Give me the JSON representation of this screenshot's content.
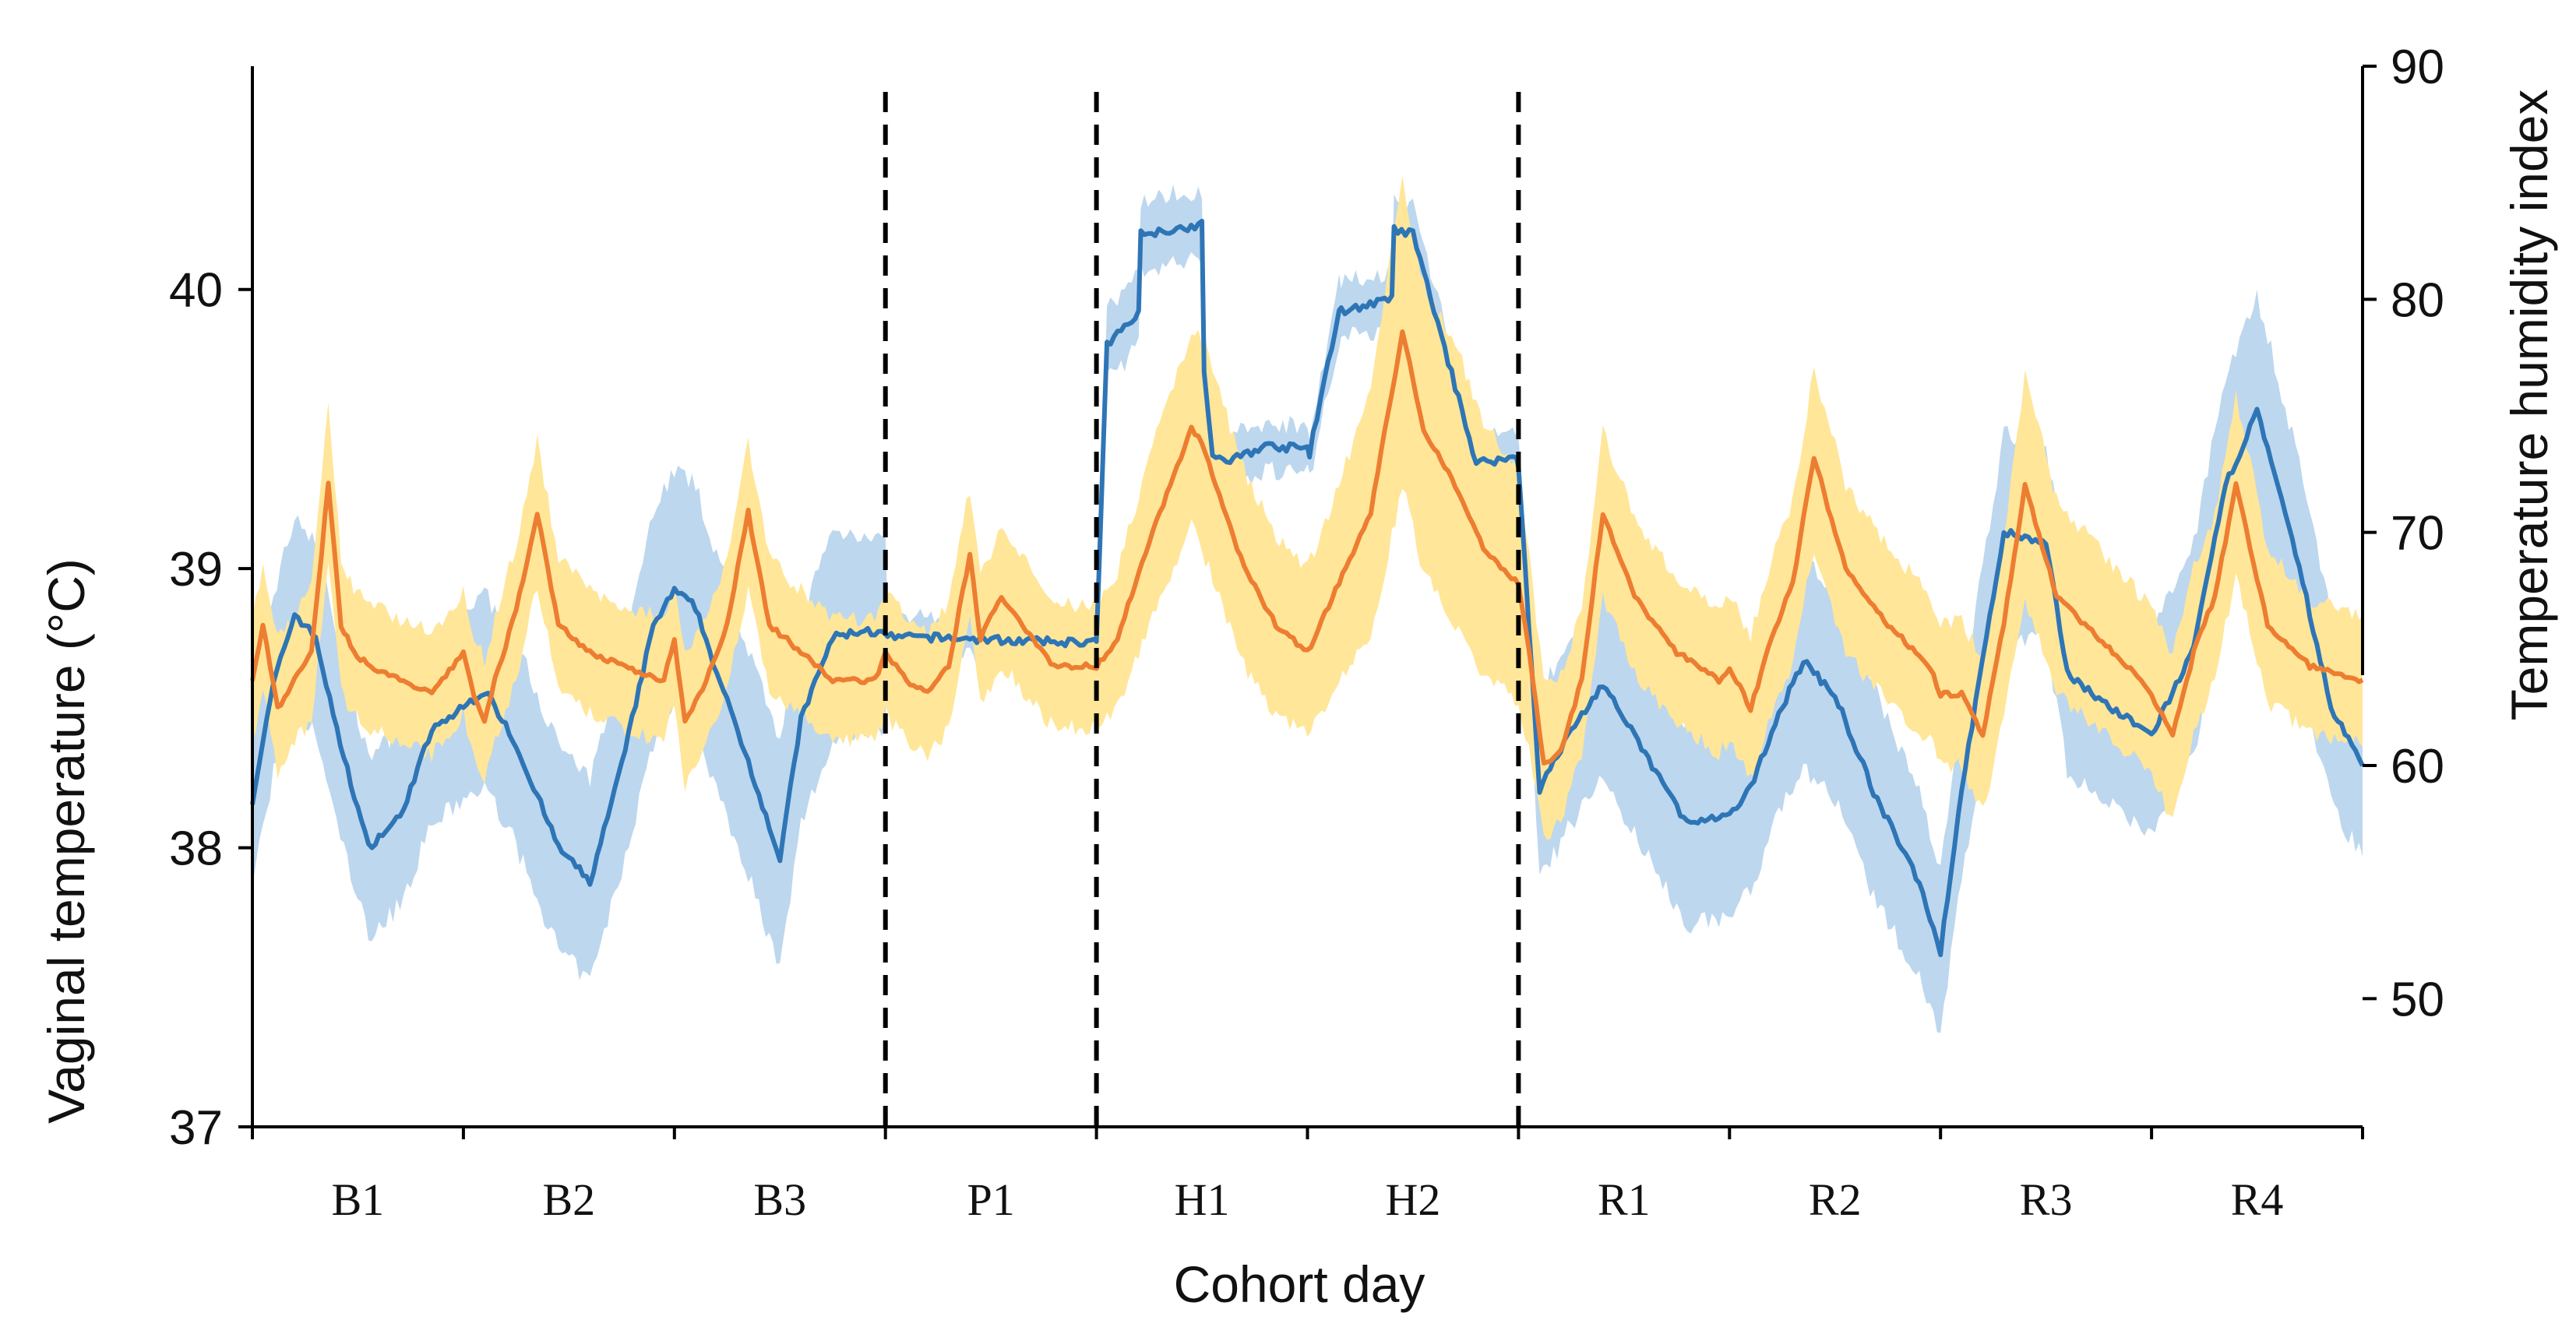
{
  "chart_data": {
    "type": "line",
    "title": "",
    "xlabel": "Cohort day",
    "ylabel_left": "Vaginal temperature (°C)",
    "ylabel_right": "Temperature humidity index",
    "left_axis": {
      "ylim": [
        37,
        40.8
      ],
      "ticks": [
        37,
        38,
        39,
        40
      ]
    },
    "right_axis": {
      "ylim": [
        44.5,
        90
      ],
      "ticks": [
        50,
        60,
        70,
        80,
        90
      ]
    },
    "categories": [
      "B1",
      "B2",
      "B3",
      "P1",
      "H1",
      "H2",
      "R1",
      "R2",
      "R3",
      "R4"
    ],
    "phase_dividers_after_day": [
      3,
      4,
      6
    ],
    "colors": {
      "thi_line": "#2e75b6",
      "thi_band": "#bdd7ee",
      "vt_line": "#ed7d31",
      "vt_band": "#ffe699"
    },
    "series": [
      {
        "name": "Temperature humidity index",
        "axis": "right",
        "x": [
          0,
          0.1,
          0.2,
          0.3,
          0.4,
          0.55,
          0.7,
          0.85,
          1,
          1.1,
          1.2,
          1.3,
          1.45,
          1.6,
          1.75,
          1.9,
          2,
          2.1,
          2.2,
          2.35,
          2.5,
          2.6,
          2.75,
          2.9,
          3,
          3.01,
          3.2,
          3.5,
          3.8,
          3.99,
          4,
          4.05,
          4.2,
          4.21,
          4.5,
          4.51,
          4.55,
          4.6,
          4.8,
          5,
          5.01,
          5.15,
          5.16,
          5.4,
          5.41,
          5.5,
          5.8,
          5.99,
          6,
          6.1,
          6.25,
          6.4,
          6.6,
          6.8,
          7,
          7.1,
          7.2,
          7.35,
          7.5,
          7.7,
          7.9,
          8,
          8.1,
          8.3,
          8.5,
          8.6,
          8.8,
          9,
          9.2,
          9.35,
          9.5,
          9.7,
          9.85,
          10
        ],
        "mean": [
          58.5,
          63.5,
          66.5,
          65.5,
          61.5,
          56.5,
          57.8,
          61.5,
          62.5,
          63.2,
          61.8,
          59.8,
          56.5,
          55,
          60,
          66,
          67.5,
          66.8,
          64,
          60.2,
          56,
          62,
          65.5,
          65.8,
          65.6,
          65.5,
          65.5,
          65.4,
          65.3,
          65.3,
          65.3,
          78,
          79.5,
          82.8,
          83.2,
          77,
          73.3,
          73,
          73.7,
          73.6,
          73.4,
          79.5,
          79.5,
          80,
          83,
          82.8,
          73,
          73.2,
          72.9,
          59,
          61.5,
          63.5,
          60.5,
          57.5,
          57.8,
          59,
          61.5,
          64.5,
          63,
          58.5,
          55,
          52,
          59,
          70,
          69.5,
          64,
          62.5,
          61.3,
          65,
          72,
          75.2,
          68.5,
          62.5,
          60
        ],
        "band_halfwidth": [
          3.5,
          3.8,
          4.2,
          4.2,
          4,
          3.8,
          3.8,
          4,
          4,
          4.2,
          4.2,
          4.4,
          4.4,
          4.3,
          4.5,
          5,
          5.2,
          5.2,
          5,
          4.8,
          4.8,
          4.5,
          4.5,
          4.2,
          4,
          0.8,
          0.8,
          0.8,
          0.8,
          0.8,
          0.8,
          1.5,
          1.5,
          1.5,
          1.5,
          1.2,
          1,
          1,
          1,
          1,
          1,
          1.2,
          1.2,
          1.2,
          1.2,
          1.2,
          1,
          1,
          1,
          4,
          4,
          4,
          4.3,
          4.3,
          4.3,
          4.3,
          4.3,
          4.5,
          4.5,
          4.5,
          4,
          3.5,
          3.8,
          4.2,
          4.2,
          4.2,
          4.2,
          4.3,
          4.5,
          4.8,
          5,
          4.5,
          4,
          4
        ]
      },
      {
        "name": "Vaginal temperature",
        "axis": "left",
        "x": [
          0,
          0.05,
          0.12,
          0.2,
          0.28,
          0.36,
          0.42,
          0.48,
          0.56,
          0.7,
          0.85,
          1,
          1.05,
          1.1,
          1.15,
          1.25,
          1.35,
          1.45,
          1.6,
          1.75,
          1.95,
          2,
          2.05,
          2.15,
          2.25,
          2.35,
          2.45,
          2.6,
          2.75,
          2.95,
          3,
          3.1,
          3.2,
          3.3,
          3.4,
          3.45,
          3.55,
          3.65,
          3.8,
          4,
          4.1,
          4.25,
          4.45,
          4.5,
          4.7,
          4.85,
          5,
          5.15,
          5.3,
          5.45,
          5.55,
          5.7,
          5.85,
          6,
          6.05,
          6.12,
          6.2,
          6.3,
          6.4,
          6.55,
          6.75,
          6.95,
          7,
          7.1,
          7.2,
          7.3,
          7.4,
          7.55,
          7.75,
          7.95,
          8,
          8.1,
          8.2,
          8.3,
          8.4,
          8.55,
          8.75,
          8.95,
          9,
          9.1,
          9.2,
          9.3,
          9.4,
          9.55,
          9.75,
          10
        ],
        "mean": [
          38.6,
          38.8,
          38.5,
          38.6,
          38.7,
          39.3,
          38.8,
          38.7,
          38.65,
          38.6,
          38.55,
          38.7,
          38.55,
          38.45,
          38.6,
          38.85,
          39.2,
          38.8,
          38.7,
          38.65,
          38.6,
          38.75,
          38.45,
          38.6,
          38.8,
          39.2,
          38.8,
          38.7,
          38.6,
          38.6,
          38.7,
          38.6,
          38.55,
          38.65,
          39.05,
          38.75,
          38.9,
          38.8,
          38.65,
          38.65,
          38.75,
          39.1,
          39.5,
          39.45,
          39,
          38.8,
          38.7,
          38.95,
          39.2,
          39.85,
          39.5,
          39.3,
          39.05,
          38.95,
          38.7,
          38.3,
          38.35,
          38.6,
          39.2,
          38.9,
          38.7,
          38.6,
          38.65,
          38.5,
          38.75,
          38.95,
          39.4,
          39,
          38.8,
          38.65,
          38.55,
          38.55,
          38.4,
          38.8,
          39.3,
          38.9,
          38.75,
          38.6,
          38.55,
          38.4,
          38.7,
          38.9,
          39.3,
          38.8,
          38.65,
          38.6
        ],
        "band_halfwidth": [
          0.22,
          0.22,
          0.25,
          0.22,
          0.24,
          0.28,
          0.24,
          0.22,
          0.22,
          0.22,
          0.22,
          0.22,
          0.22,
          0.22,
          0.22,
          0.24,
          0.26,
          0.24,
          0.22,
          0.22,
          0.22,
          0.22,
          0.24,
          0.24,
          0.24,
          0.26,
          0.24,
          0.22,
          0.22,
          0.22,
          0.22,
          0.22,
          0.22,
          0.22,
          0.24,
          0.24,
          0.24,
          0.24,
          0.22,
          0.22,
          0.24,
          0.3,
          0.35,
          0.38,
          0.35,
          0.32,
          0.3,
          0.35,
          0.45,
          0.55,
          0.52,
          0.5,
          0.45,
          0.42,
          0.35,
          0.28,
          0.26,
          0.26,
          0.3,
          0.28,
          0.26,
          0.26,
          0.26,
          0.26,
          0.28,
          0.3,
          0.32,
          0.3,
          0.28,
          0.26,
          0.26,
          0.26,
          0.28,
          0.32,
          0.4,
          0.35,
          0.32,
          0.3,
          0.3,
          0.3,
          0.3,
          0.3,
          0.32,
          0.28,
          0.24,
          0.22
        ]
      }
    ]
  }
}
